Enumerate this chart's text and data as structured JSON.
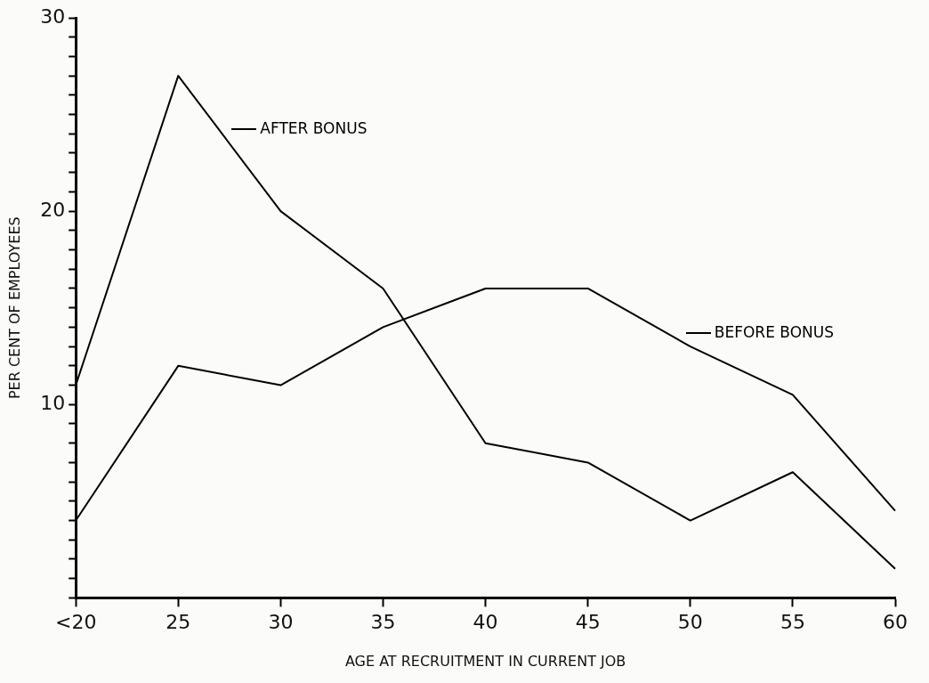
{
  "chart_data": {
    "type": "line",
    "xlabel": "AGE AT RECRUITMENT IN CURRENT JOB",
    "ylabel": "PER CENT OF EMPLOYEES",
    "categories": [
      "<20",
      "25",
      "30",
      "35",
      "40",
      "45",
      "50",
      "55",
      "60"
    ],
    "series": [
      {
        "name": "AFTER BONUS",
        "color": "#000000",
        "values": [
          11,
          27,
          20,
          16,
          8,
          7,
          4,
          6.5,
          1.5
        ]
      },
      {
        "name": "BEFORE BONUS",
        "color": "#000000",
        "values": [
          4,
          12,
          11,
          14,
          16,
          16,
          13,
          10.5,
          4.5
        ]
      }
    ],
    "ylim": [
      0,
      30
    ],
    "yticks": [
      {
        "value": 0,
        "label": null
      },
      {
        "value": 1,
        "label": null
      },
      {
        "value": 2,
        "label": null
      },
      {
        "value": 3,
        "label": null
      },
      {
        "value": 4,
        "label": null
      },
      {
        "value": 5,
        "label": null
      },
      {
        "value": 6,
        "label": null
      },
      {
        "value": 7,
        "label": null
      },
      {
        "value": 8,
        "label": null
      },
      {
        "value": 9,
        "label": null
      },
      10,
      {
        "value": 11,
        "label": null
      },
      {
        "value": 12,
        "label": null
      },
      {
        "value": 13,
        "label": null
      },
      {
        "value": 14,
        "label": null
      },
      {
        "value": 15,
        "label": null
      },
      {
        "value": 16,
        "label": null
      },
      {
        "value": 17,
        "label": null
      },
      {
        "value": 18,
        "label": null
      },
      {
        "value": 19,
        "label": null
      },
      20,
      {
        "value": 21,
        "label": null
      },
      {
        "value": 22,
        "label": null
      },
      {
        "value": 23,
        "label": null
      },
      {
        "value": 24,
        "label": null
      },
      {
        "value": 25,
        "label": null
      },
      {
        "value": 26,
        "label": null
      },
      {
        "value": 27,
        "label": null
      },
      {
        "value": 28,
        "label": null
      },
      {
        "value": 29,
        "label": null
      },
      30
    ],
    "grid": false,
    "legend": "top right",
    "marker": "none",
    "line_style": "solid"
  }
}
